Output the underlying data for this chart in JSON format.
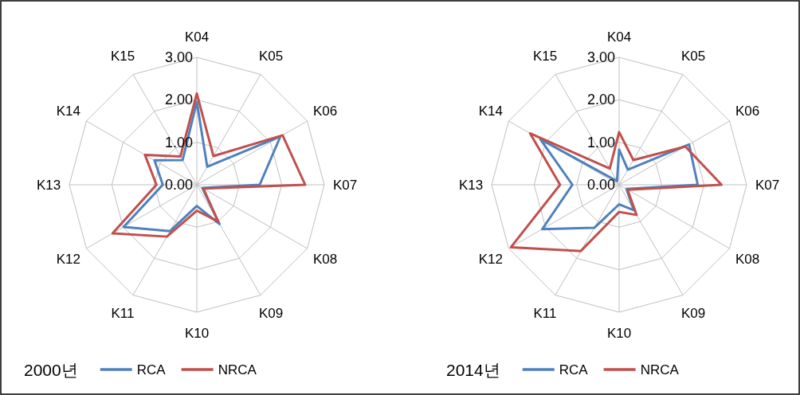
{
  "chart_data": [
    {
      "type": "radar",
      "categories": [
        "K04",
        "K05",
        "K06",
        "K07",
        "K08",
        "K09",
        "K10",
        "K11",
        "K12",
        "K13",
        "K14",
        "K15"
      ],
      "series": [
        {
          "name": "RCA",
          "color": "#4f81bd",
          "values": [
            1.95,
            0.49,
            2.27,
            1.48,
            0.15,
            1.07,
            0.5,
            1.26,
            1.99,
            0.8,
            1.15,
            0.67
          ]
        },
        {
          "name": "NRCA",
          "color": "#c0504d",
          "values": [
            2.15,
            0.78,
            2.33,
            2.55,
            0.18,
            1.0,
            0.61,
            1.41,
            2.29,
            0.95,
            1.41,
            0.77
          ]
        }
      ],
      "ylim": [
        0,
        3
      ],
      "yticks": [
        {
          "value": 0,
          "label": "0.00"
        },
        {
          "value": 1,
          "label": "1.00"
        },
        {
          "value": 2,
          "label": "2.00"
        },
        {
          "value": 3,
          "label": "3.00"
        }
      ],
      "grid": true,
      "legend": "bottom",
      "legend_title": "2000년"
    },
    {
      "type": "radar",
      "categories": [
        "K04",
        "K05",
        "K06",
        "K07",
        "K08",
        "K09",
        "K10",
        "K11",
        "K12",
        "K13",
        "K14",
        "K15"
      ],
      "series": [
        {
          "name": "RCA",
          "color": "#4f81bd",
          "values": [
            0.83,
            0.41,
            1.9,
            1.85,
            0.2,
            0.69,
            0.46,
            1.17,
            2.09,
            1.1,
            2.14,
            0.1
          ]
        },
        {
          "name": "NRCA",
          "color": "#c0504d",
          "values": [
            1.24,
            0.67,
            1.8,
            2.41,
            0.23,
            0.82,
            0.64,
            1.8,
            2.94,
            1.39,
            2.42,
            0.44
          ]
        }
      ],
      "ylim": [
        0,
        3
      ],
      "yticks": [
        {
          "value": 0,
          "label": "0.00"
        },
        {
          "value": 1,
          "label": "1.00"
        },
        {
          "value": 2,
          "label": "2.00"
        },
        {
          "value": 3,
          "label": "3.00"
        }
      ],
      "grid": true,
      "legend": "bottom",
      "legend_title": "2014년"
    }
  ]
}
